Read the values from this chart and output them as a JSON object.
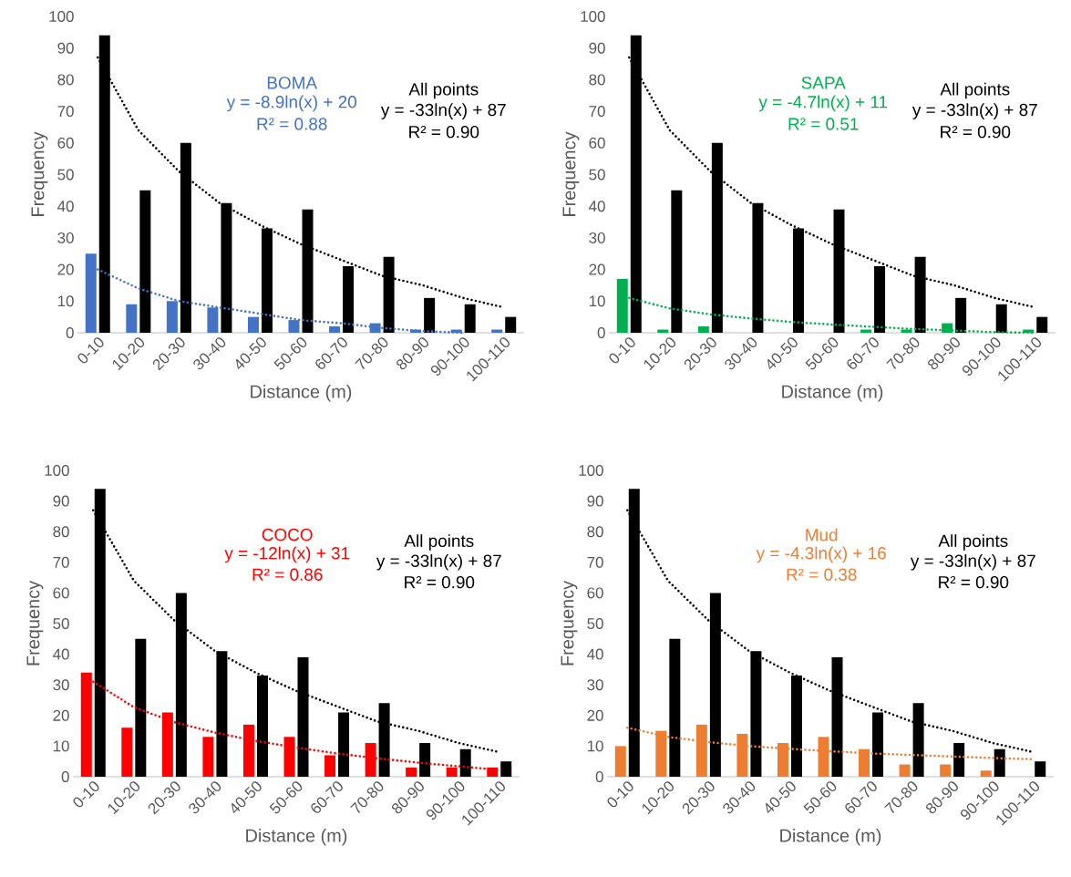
{
  "chart_data": [
    {
      "type": "bar",
      "xlabel": "Distance (m)",
      "ylabel": "Frequency",
      "categories": [
        "0-10",
        "10-20",
        "20-30",
        "30-40",
        "40-50",
        "50-60",
        "60-70",
        "70-80",
        "80-90",
        "90-100",
        "100-110"
      ],
      "ylim": [
        0,
        100
      ],
      "yticks": [
        0,
        10,
        20,
        30,
        40,
        50,
        60,
        70,
        80,
        90,
        100
      ],
      "series": [
        {
          "color": "#4472c4",
          "values": [
            25,
            9,
            10,
            8,
            5,
            4,
            2,
            3,
            1,
            1,
            1
          ]
        },
        {
          "color": "#000000",
          "values": [
            94,
            45,
            60,
            41,
            33,
            39,
            21,
            24,
            11,
            9,
            5
          ]
        },
        {
          "type": "line",
          "line_style": "dotted",
          "name": "BOMA",
          "color": "#4472c4",
          "values": [
            20,
            14,
            10,
            8,
            6,
            4,
            3,
            1.5,
            0.5,
            0,
            null
          ]
        },
        {
          "type": "line",
          "line_style": "dotted",
          "name": "All points",
          "color": "#000000",
          "values": [
            87,
            64,
            51,
            41,
            34,
            28,
            23,
            18,
            15,
            11,
            8
          ]
        }
      ],
      "annotations": [
        "y = -8.9ln(x) + 20",
        "R² = 0.88",
        "y = -33ln(x) + 87",
        "R² = 0.90"
      ]
    },
    {
      "type": "bar",
      "xlabel": "Distance (m)",
      "ylabel": "Frequency",
      "categories": [
        "0-10",
        "10-20",
        "20-30",
        "30-40",
        "40-50",
        "50-60",
        "60-70",
        "70-80",
        "80-90",
        "90-100",
        "100-110"
      ],
      "ylim": [
        0,
        100
      ],
      "yticks": [
        0,
        10,
        20,
        30,
        40,
        50,
        60,
        70,
        80,
        90,
        100
      ],
      "series": [
        {
          "color": "#00b050",
          "values": [
            17,
            1,
            2,
            0,
            0,
            0,
            1,
            1,
            3,
            0,
            1
          ]
        },
        {
          "color": "#000000",
          "values": [
            94,
            45,
            60,
            41,
            33,
            39,
            21,
            24,
            11,
            9,
            5
          ]
        },
        {
          "type": "line",
          "line_style": "dotted",
          "name": "SAPA",
          "color": "#00b050",
          "values": [
            11,
            7.7,
            5.8,
            4.5,
            3.4,
            2.6,
            1.9,
            1.2,
            0.7,
            0.2,
            0
          ]
        },
        {
          "type": "line",
          "line_style": "dotted",
          "name": "All points",
          "color": "#000000",
          "values": [
            87,
            64,
            51,
            41,
            34,
            28,
            23,
            18,
            15,
            11,
            8
          ]
        }
      ],
      "annotations": [
        "y = -4.7ln(x) + 11",
        "R² = 0.51",
        "y = -33ln(x) + 87",
        "R² = 0.90"
      ]
    },
    {
      "type": "bar",
      "xlabel": "Distance (m)",
      "ylabel": "Frequency",
      "categories": [
        "0-10",
        "10-20",
        "20-30",
        "30-40",
        "40-50",
        "50-60",
        "60-70",
        "70-80",
        "80-90",
        "90-100",
        "100-110"
      ],
      "ylim": [
        0,
        100
      ],
      "yticks": [
        0,
        10,
        20,
        30,
        40,
        50,
        60,
        70,
        80,
        90,
        100
      ],
      "series": [
        {
          "color": "#ff0000",
          "values": [
            34,
            16,
            21,
            13,
            17,
            13,
            7,
            11,
            3,
            3,
            3
          ]
        },
        {
          "color": "#000000",
          "values": [
            94,
            45,
            60,
            41,
            33,
            39,
            21,
            24,
            11,
            9,
            5
          ]
        },
        {
          "type": "line",
          "line_style": "dotted",
          "name": "COCO",
          "color": "#ff0000",
          "values": [
            31,
            22.7,
            17.8,
            14.4,
            11.7,
            9.5,
            7.6,
            6,
            4.6,
            3.4,
            2.2
          ]
        },
        {
          "type": "line",
          "line_style": "dotted",
          "name": "All points",
          "color": "#000000",
          "values": [
            87,
            64,
            51,
            41,
            34,
            28,
            23,
            18,
            15,
            11,
            8
          ]
        }
      ],
      "annotations": [
        "y = -12ln(x) + 31",
        "R² = 0.86",
        "y = -33ln(x) + 87",
        "R² = 0.90"
      ]
    },
    {
      "type": "bar",
      "xlabel": "Distance (m)",
      "ylabel": "Frequency",
      "categories": [
        "0-10",
        "10-20",
        "20-30",
        "30-40",
        "40-50",
        "50-60",
        "60-70",
        "70-80",
        "80-90",
        "90-100",
        "100-110"
      ],
      "ylim": [
        0,
        100
      ],
      "yticks": [
        0,
        10,
        20,
        30,
        40,
        50,
        60,
        70,
        80,
        90,
        100
      ],
      "series": [
        {
          "color": "#ed7d31",
          "values": [
            10,
            15,
            17,
            14,
            11,
            13,
            9,
            4,
            4,
            2,
            0
          ]
        },
        {
          "color": "#000000",
          "values": [
            94,
            45,
            60,
            41,
            33,
            39,
            21,
            24,
            11,
            9,
            5
          ]
        },
        {
          "type": "line",
          "line_style": "dotted",
          "name": "Mud",
          "color": "#ed7d31",
          "values": [
            16,
            13,
            11.3,
            10,
            9.1,
            8.3,
            7.6,
            7.1,
            6.6,
            6.1,
            5.7
          ]
        },
        {
          "type": "line",
          "line_style": "dotted",
          "name": "All points",
          "color": "#000000",
          "values": [
            87,
            64,
            51,
            41,
            34,
            28,
            23,
            18,
            15,
            11,
            8
          ]
        }
      ],
      "annotations": [
        "y = -4.3ln(x) + 16",
        "R² = 0.38",
        "y = -33ln(x) + 87",
        "R² = 0.90"
      ]
    }
  ]
}
